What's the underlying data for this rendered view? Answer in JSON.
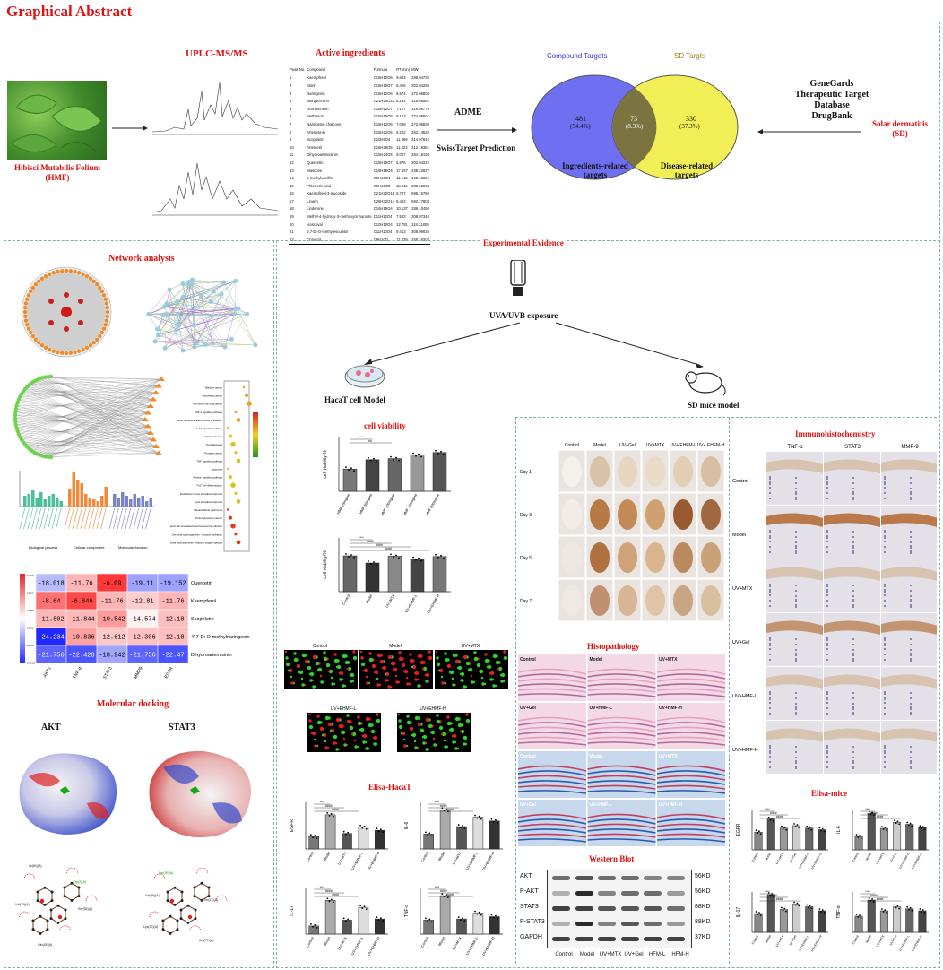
{
  "title": "Graphical Abstract",
  "top": {
    "hmf_label": "Hibisci Mutabilis Folium\n(HMF)",
    "hmf_line1": "Hibisci Mutabilis Folium",
    "hmf_line2": "(HMF)",
    "uplc_label": "UPLC-MS/MS",
    "active_label": "Active ingredients",
    "adme_label": "ADME",
    "swiss_label": "SwissTarget Prediction",
    "compound_targets": "Compound Targets",
    "sd_targets": "SD Targts",
    "venn_left_count": "481",
    "venn_left_pct": "(54.4%)",
    "venn_mid_count": "73",
    "venn_mid_pct": "(8.3%)",
    "venn_right_count": "330",
    "venn_right_pct": "(37.3%)",
    "ingredients_related": "Ingredients-related",
    "targets": "targets",
    "disease_related": "Disease-related",
    "db1": "GeneGards",
    "db2": "Therapeutic Target",
    "db3": "Database",
    "db4": "DrugBank",
    "sd_label1": "Solar dermatitis",
    "sd_label2": "(SD)",
    "table_headers": [
      "Peak No.",
      "Compound",
      "Formula",
      "RT(min)",
      "MW"
    ],
    "table_rows": [
      [
        "1",
        "Kaempferol",
        "C15H10O6",
        "9.863",
        "286.04735"
      ],
      [
        "2",
        "Morin",
        "C15H10O7",
        "6.426",
        "302.04250"
      ],
      [
        "3",
        "Naringenin",
        "C15H12O5",
        "6.574",
        "272.06804"
      ],
      [
        "4",
        "Biorquercitrin",
        "C21H20O12",
        "5.292",
        "318.06561"
      ],
      [
        "5",
        "Isorhamnetin",
        "C16H12O7",
        "7.107",
        "316.05776"
      ],
      [
        "6",
        "Methyricin",
        "C15H10O8",
        "9.173",
        "274.0850"
      ],
      [
        "7",
        "Naringenin chalcone",
        "C15H12O5",
        "7.088",
        "272.06839"
      ],
      [
        "8",
        "Artemisinin",
        "C15H22O5",
        "9.222",
        "282.14629"
      ],
      [
        "9",
        "Scopoletin",
        "C10H8O4",
        "11.369",
        "314.07845"
      ],
      [
        "10",
        "Artemetil",
        "C16H26O5",
        "11.023",
        "312.19381"
      ],
      [
        "11",
        "Dihydroartemisinin",
        "C15H24O5",
        "9.047",
        "284.16194"
      ],
      [
        "12",
        "Quercetin",
        "C15H10O7",
        "5.876",
        "302.04222"
      ],
      [
        "13",
        "Mascone",
        "C16H18O4",
        "17.057",
        "238.22827"
      ],
      [
        "14",
        "5-methylvanillin",
        "C9H10O4",
        "11.143",
        "198.13821"
      ],
      [
        "15",
        "Phlorretic acid",
        "C9H10O3",
        "13.211",
        "332.25563"
      ],
      [
        "16",
        "Kaempferol-3-glucoside",
        "C21H20O11",
        "6.707",
        "596.15750"
      ],
      [
        "17",
        "Linarin",
        "C28H32O14",
        "8.463",
        "592.17804"
      ],
      [
        "18",
        "Linderone",
        "C16H16O4",
        "10.137",
        "286.10450"
      ],
      [
        "19",
        "Methyl-4-hydroxy-3-methoxycinnamate",
        "C11H12O4",
        "7.503",
        "208.07344"
      ],
      [
        "20",
        "Isoscoval",
        "C10H10O4",
        "12.781",
        "118.21809"
      ],
      [
        "21",
        "6,7-Di-O-methylesculetin",
        "C11H10O4",
        "9.413",
        "306.09035"
      ],
      [
        "22",
        "Chavicol",
        "C9H10O",
        "11.339",
        "258.19202"
      ]
    ]
  },
  "network": {
    "title": "Network analysis",
    "go_cats": [
      "Biological process",
      "Cellular component",
      "Molecular function"
    ],
    "kegg_terms": [
      "Bladder cancer",
      "Pancreatic cancer",
      "Non-small cell lung cancer",
      "HIF-1 signaling pathway",
      "EGFR tyrosine kinase inhibitor resistance",
      "IL-17 signaling pathway",
      "Chagas disease",
      "Toxoplasmosis",
      "Prostate cancer",
      "TNF signaling pathway",
      "Apoptosis",
      "Relaxin signaling pathway",
      "Th17 cell differentiation",
      "Fluid shear stress and atherosclerosis",
      "Lipid and atherosclerosis",
      "Hepatocellular carcinoma",
      "Proteoglycans in cancer",
      "Kaposi sarcoma-associated herpesvirus infection",
      "Chemical carcinogenesis - receptor activation",
      "Chemical carcinogenesis - reactive oxygen species"
    ]
  },
  "docking": {
    "title": "Molecular docking",
    "heatmap_values": [
      [
        "-18.018",
        "-11.76",
        "-6.09",
        "-19.11",
        "-19.152"
      ],
      [
        "-8.64",
        "-6.846",
        "-11.76",
        "-12.81",
        "-11.76"
      ],
      [
        "-11.802",
        "-11.844",
        "-10.542",
        "-14.574",
        "-12.18"
      ],
      [
        "-24.234",
        "-10.836",
        "-12.612",
        "-12.306",
        "-12.18"
      ],
      [
        "-21.756",
        "-22.428",
        "-18.942",
        "-21.756",
        "-22.47"
      ]
    ],
    "row_labels": [
      "Quercetin",
      "Kaempferol",
      "Scopoletin",
      "4',7-Di-O-methylnaringenin",
      "Dihydroartemisinin"
    ],
    "col_labels": [
      "AKT1",
      "TNF-α",
      "STAT3",
      "MMP9",
      "EGFR"
    ],
    "legend_ticks": [
      "-6.000",
      "-10.50",
      "-13.50",
      "-16.50",
      "-19.50",
      "-24.000"
    ],
    "protein1": "AKT",
    "protein2": "STAT3",
    "residues_akt": [
      "Trp(2)(A)",
      "Ile(84)(A)",
      "Val(13)(A)",
      "Ser(55)(A)",
      "Gln(45)(A)"
    ],
    "residues_stat3": [
      "Ser(39)(A)",
      "Val(29)(A)",
      "Lys(30)(A)",
      "Thr(27)(A)",
      "Arg(77)(A)"
    ]
  },
  "experimental": {
    "title": "Experimental Evidence",
    "exposure": "UVA/UVB exposure",
    "cell_model": "HacaT cell Model",
    "mice_model": "SD mice model",
    "cell_viability": {
      "title": "cell viability",
      "chart1": {
        "ylabel": "cell viability/%",
        "ylim": [
          0,
          150
        ],
        "categories": [
          "HMF 25mg/ml",
          "HMF 50mg/ml",
          "HMF 100mg/ml",
          "HMF 150mg/ml",
          "HMF 200mg/ml"
        ],
        "values": [
          62,
          88,
          91,
          101,
          108
        ],
        "sig": [
          "***",
          "ns"
        ]
      },
      "chart2": {
        "ylabel": "cell viability/%",
        "ylim": [
          0,
          150
        ],
        "categories": [
          "Control",
          "Model",
          "UV+MTX",
          "UV+EHMF-L",
          "UV+EHMF-H"
        ],
        "values": [
          100,
          80,
          99,
          91,
          98
        ],
        "sig": [
          "****",
          "####",
          "####",
          "####"
        ]
      }
    },
    "fluor_labels": [
      "Control",
      "Model",
      "UV+MTX",
      "UV+EHMF-L",
      "UV+EHMF-H"
    ],
    "elisa_hacat": {
      "title": "Elisa-HacaT",
      "charts": [
        {
          "ylabel": "EGFR",
          "ylim": [
            0,
            15
          ],
          "values": [
            4,
            11,
            5,
            7,
            6
          ]
        },
        {
          "ylabel": "IL-6",
          "ylim": [
            0,
            25
          ],
          "values": [
            8,
            21,
            12,
            17,
            15
          ]
        },
        {
          "ylabel": "IL-17",
          "ylim": [
            0,
            200
          ],
          "values": [
            35,
            145,
            60,
            115,
            65
          ]
        },
        {
          "ylabel": "TNF-α",
          "ylim": [
            0,
            40
          ],
          "values": [
            12,
            33,
            13,
            18,
            15
          ]
        }
      ],
      "categories": [
        "Control",
        "Model",
        "UV+MTX",
        "UV+EHMF-L",
        "UV+EHMF-H"
      ]
    },
    "photos": {
      "col_labels": [
        "Control",
        "Model",
        "UV+Gel",
        "UV+MTX",
        "UV+ EHFM-L",
        "UV+ EHFM-H"
      ],
      "row_labels": [
        "Day 1",
        "Day 3",
        "Day 5",
        "Day 7"
      ]
    },
    "histopathology": {
      "title": "Histopathology",
      "labels_he": [
        "Control",
        "Model",
        "UV+MTX",
        "UV+Gel",
        "UV+HMF-L",
        "UV+HMF-H"
      ],
      "labels_masson": [
        "Control",
        "Model",
        "UV+MTX",
        "UV+Gel",
        "UV+HMF-L",
        "UV+HMF-H"
      ]
    },
    "western_blot": {
      "title": "Western Blot",
      "proteins": [
        "AKT",
        "P-AKT",
        "STAT3",
        "P-STAT3",
        "GAPDH"
      ],
      "sizes": [
        "56KD",
        "56KD",
        "88KD",
        "88KD",
        "37KD"
      ],
      "lanes": [
        "Control",
        "Model",
        "UV+MTX",
        "UV+Gel",
        "HFM-L",
        "HFM-H"
      ]
    },
    "ihc": {
      "title": "Immunohistochemistry",
      "cols": [
        "TNF-α",
        "STAT3",
        "MMP-9"
      ],
      "rows": [
        "Control",
        "Model",
        "UV+MTX",
        "UV+Gel",
        "UV+HMF-L",
        "UV+HMF-H"
      ]
    },
    "elisa_mice": {
      "title": "Elisa-mice",
      "charts": [
        {
          "ylabel": "EGFR",
          "values": [
            110,
            190,
            135,
            150,
            135,
            125
          ]
        },
        {
          "ylabel": "IL-6",
          "values": [
            100,
            270,
            160,
            205,
            190,
            165
          ]
        },
        {
          "ylabel": "IL-17",
          "values": [
            70,
            140,
            85,
            105,
            95,
            80
          ]
        },
        {
          "ylabel": "TNF-α",
          "values": [
            120,
            240,
            160,
            190,
            175,
            160
          ]
        }
      ],
      "categories": [
        "Control",
        "Model",
        "UV+MTX",
        "UV+Gel",
        "UV+EHMF-L",
        "UV+EHMF-H"
      ]
    }
  },
  "chart_data": [
    {
      "type": "bar",
      "title": "cell viability",
      "ylabel": "cell viability/%",
      "categories": [
        "HMF 25mg/ml",
        "HMF 50mg/ml",
        "HMF 100mg/ml",
        "HMF 150mg/ml",
        "HMF 200mg/ml"
      ],
      "values": [
        62,
        88,
        91,
        101,
        108
      ],
      "ylim": [
        0,
        150
      ]
    },
    {
      "type": "bar",
      "ylabel": "cell viability/%",
      "categories": [
        "Control",
        "Model",
        "UV+MTX",
        "UV+EHMF-L",
        "UV+EHMF-H"
      ],
      "values": [
        100,
        80,
        99,
        91,
        98
      ],
      "ylim": [
        0,
        150
      ]
    },
    {
      "type": "heatmap",
      "title": "Molecular docking",
      "x": [
        "AKT1",
        "TNF-α",
        "STAT3",
        "MMP9",
        "EGFR"
      ],
      "y": [
        "Quercetin",
        "Kaempferol",
        "Scopoletin",
        "4',7-Di-O-methylnaringenin",
        "Dihydroartemisinin"
      ],
      "values": [
        [
          -18.018,
          -11.76,
          -6.09,
          -19.11,
          -19.152
        ],
        [
          -8.64,
          -6.846,
          -11.76,
          -12.81,
          -11.76
        ],
        [
          -11.802,
          -11.844,
          -10.542,
          -14.574,
          -12.18
        ],
        [
          -24.234,
          -10.836,
          -12.612,
          -12.306,
          -12.18
        ],
        [
          -21.756,
          -22.428,
          -18.942,
          -21.756,
          -22.47
        ]
      ]
    }
  ],
  "colors": {
    "title_red": "#e01010",
    "dash": "#7fb0a8",
    "venn_blue": "#6f6ff2",
    "venn_yellow": "#f2ee55",
    "venn_overlap": "#7b7440"
  }
}
